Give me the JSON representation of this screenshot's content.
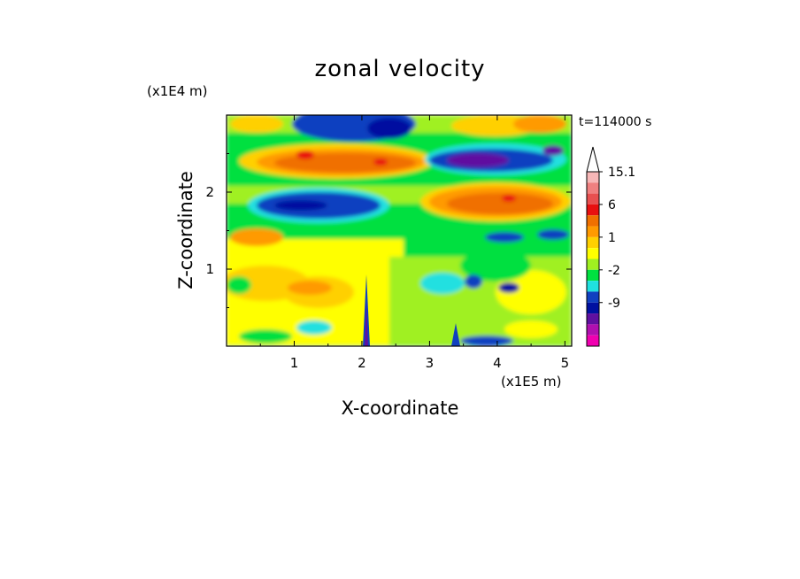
{
  "chart_data": {
    "type": "heatmap",
    "title": "zonal velocity",
    "time_label": "t=114000 s",
    "xlabel": "X-coordinate",
    "ylabel": "Z-coordinate",
    "x_unit": "(x1E5 m)",
    "y_unit": "(x1E4 m)",
    "xlim": [
      0,
      5.1
    ],
    "ylim": [
      0,
      3.0
    ],
    "x_ticks": [
      "1",
      "2",
      "3",
      "4",
      "5"
    ],
    "y_ticks": [
      "1",
      "2"
    ],
    "colorbar": {
      "levels": [
        15.1,
        12,
        9,
        6,
        4,
        2,
        1,
        0,
        -1,
        -2,
        -4,
        -6,
        -9,
        -12,
        -15
      ],
      "labels": [
        "15.1",
        "6",
        "1",
        "-2",
        "-9"
      ],
      "colors": [
        "#ffffff",
        "#f7b7b7",
        "#f08080",
        "#e85050",
        "#e81010",
        "#f07000",
        "#ff9a00",
        "#ffd000",
        "#ffff00",
        "#a0f020",
        "#00e040",
        "#20e0e0",
        "#1040c0",
        "#0010a0",
        "#6010a0",
        "#b010b0",
        "#f000b0"
      ]
    }
  }
}
